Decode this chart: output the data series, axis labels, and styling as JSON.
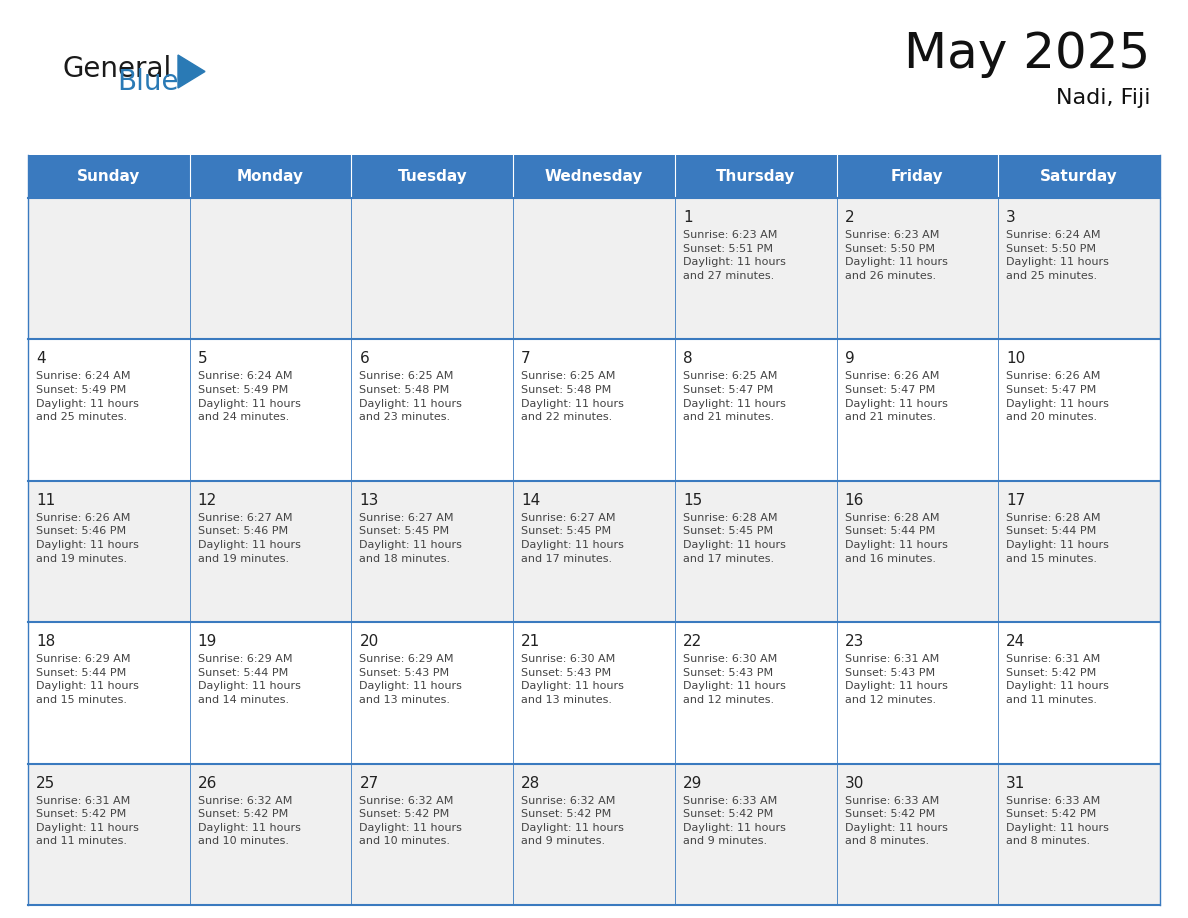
{
  "title": "May 2025",
  "subtitle": "Nadi, Fiji",
  "days_of_week": [
    "Sunday",
    "Monday",
    "Tuesday",
    "Wednesday",
    "Thursday",
    "Friday",
    "Saturday"
  ],
  "header_bg": "#3a7abf",
  "header_text": "#ffffff",
  "row_bg_odd": "#f0f0f0",
  "row_bg_even": "#ffffff",
  "cell_border": "#3a7abf",
  "text_color": "#444444",
  "day_num_color": "#222222",
  "calendar_data": [
    [
      "",
      "",
      "",
      "",
      "1\nSunrise: 6:23 AM\nSunset: 5:51 PM\nDaylight: 11 hours\nand 27 minutes.",
      "2\nSunrise: 6:23 AM\nSunset: 5:50 PM\nDaylight: 11 hours\nand 26 minutes.",
      "3\nSunrise: 6:24 AM\nSunset: 5:50 PM\nDaylight: 11 hours\nand 25 minutes."
    ],
    [
      "4\nSunrise: 6:24 AM\nSunset: 5:49 PM\nDaylight: 11 hours\nand 25 minutes.",
      "5\nSunrise: 6:24 AM\nSunset: 5:49 PM\nDaylight: 11 hours\nand 24 minutes.",
      "6\nSunrise: 6:25 AM\nSunset: 5:48 PM\nDaylight: 11 hours\nand 23 minutes.",
      "7\nSunrise: 6:25 AM\nSunset: 5:48 PM\nDaylight: 11 hours\nand 22 minutes.",
      "8\nSunrise: 6:25 AM\nSunset: 5:47 PM\nDaylight: 11 hours\nand 21 minutes.",
      "9\nSunrise: 6:26 AM\nSunset: 5:47 PM\nDaylight: 11 hours\nand 21 minutes.",
      "10\nSunrise: 6:26 AM\nSunset: 5:47 PM\nDaylight: 11 hours\nand 20 minutes."
    ],
    [
      "11\nSunrise: 6:26 AM\nSunset: 5:46 PM\nDaylight: 11 hours\nand 19 minutes.",
      "12\nSunrise: 6:27 AM\nSunset: 5:46 PM\nDaylight: 11 hours\nand 19 minutes.",
      "13\nSunrise: 6:27 AM\nSunset: 5:45 PM\nDaylight: 11 hours\nand 18 minutes.",
      "14\nSunrise: 6:27 AM\nSunset: 5:45 PM\nDaylight: 11 hours\nand 17 minutes.",
      "15\nSunrise: 6:28 AM\nSunset: 5:45 PM\nDaylight: 11 hours\nand 17 minutes.",
      "16\nSunrise: 6:28 AM\nSunset: 5:44 PM\nDaylight: 11 hours\nand 16 minutes.",
      "17\nSunrise: 6:28 AM\nSunset: 5:44 PM\nDaylight: 11 hours\nand 15 minutes."
    ],
    [
      "18\nSunrise: 6:29 AM\nSunset: 5:44 PM\nDaylight: 11 hours\nand 15 minutes.",
      "19\nSunrise: 6:29 AM\nSunset: 5:44 PM\nDaylight: 11 hours\nand 14 minutes.",
      "20\nSunrise: 6:29 AM\nSunset: 5:43 PM\nDaylight: 11 hours\nand 13 minutes.",
      "21\nSunrise: 6:30 AM\nSunset: 5:43 PM\nDaylight: 11 hours\nand 13 minutes.",
      "22\nSunrise: 6:30 AM\nSunset: 5:43 PM\nDaylight: 11 hours\nand 12 minutes.",
      "23\nSunrise: 6:31 AM\nSunset: 5:43 PM\nDaylight: 11 hours\nand 12 minutes.",
      "24\nSunrise: 6:31 AM\nSunset: 5:42 PM\nDaylight: 11 hours\nand 11 minutes."
    ],
    [
      "25\nSunrise: 6:31 AM\nSunset: 5:42 PM\nDaylight: 11 hours\nand 11 minutes.",
      "26\nSunrise: 6:32 AM\nSunset: 5:42 PM\nDaylight: 11 hours\nand 10 minutes.",
      "27\nSunrise: 6:32 AM\nSunset: 5:42 PM\nDaylight: 11 hours\nand 10 minutes.",
      "28\nSunrise: 6:32 AM\nSunset: 5:42 PM\nDaylight: 11 hours\nand 9 minutes.",
      "29\nSunrise: 6:33 AM\nSunset: 5:42 PM\nDaylight: 11 hours\nand 9 minutes.",
      "30\nSunrise: 6:33 AM\nSunset: 5:42 PM\nDaylight: 11 hours\nand 8 minutes.",
      "31\nSunrise: 6:33 AM\nSunset: 5:42 PM\nDaylight: 11 hours\nand 8 minutes."
    ]
  ],
  "logo_color_general": "#1a1a1a",
  "logo_color_blue": "#2a7ab5",
  "logo_triangle_color": "#2a7ab5",
  "fig_width": 11.88,
  "fig_height": 9.18,
  "dpi": 100
}
